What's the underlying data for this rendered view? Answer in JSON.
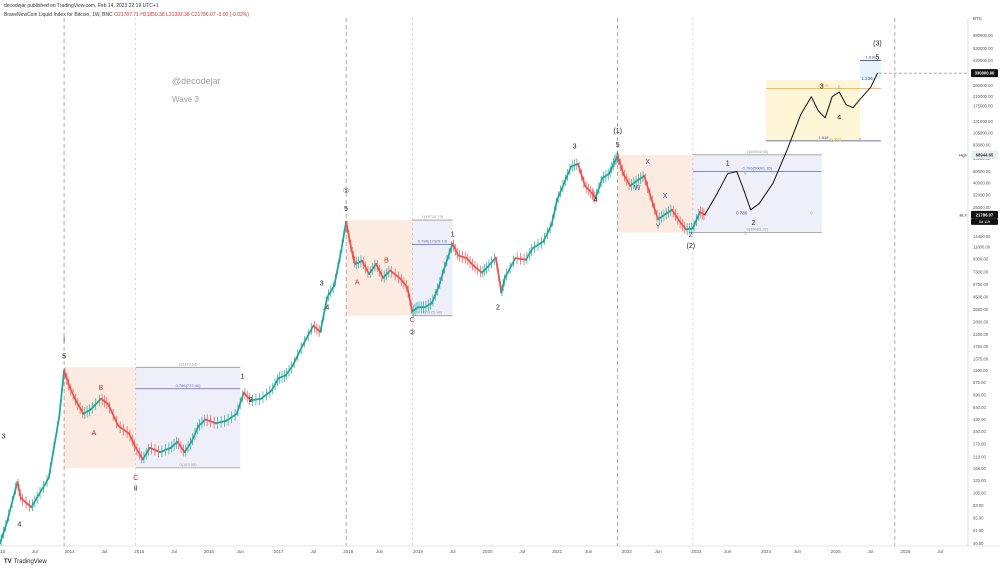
{
  "header": {
    "published": "decodejar published on TradingView.com, Feb 14, 2023 22:19 UTC+1",
    "symbol": "BraveNewCoin Liquid Index for Bitcoin, 1W, BNC",
    "ohlc": "O21787.71 H21850.38 L21392.38 C21786.07 -3.00 (-0.02%)"
  },
  "watermark": {
    "handle": "@decodejar",
    "subtitle": "Wave 3"
  },
  "footer": {
    "brand": "TradingView"
  },
  "colors": {
    "up": "#26a69a",
    "down": "#ef5350",
    "fib_pink": "#fce8dc",
    "fib_blue": "#e8eaf6",
    "fib_gold": "#fff3d0",
    "fib_lightblue": "#e3f2fd",
    "label_red": "#c62828",
    "label_blue": "#3949ab",
    "line_purple": "#5c6bc0"
  },
  "chart_data": {
    "type": "candlestick",
    "title": "",
    "scale": "log",
    "y_ticks": [
      "BTC",
      "880000.00",
      "680000.00",
      "530000.00",
      "420000.00",
      "330000.00",
      "260000.00",
      "210000.00",
      "175000.00",
      "131000.00",
      "105000.00",
      "83000.00",
      "64000.00",
      "50000.00",
      "40000.00",
      "32000.00",
      "25000.00",
      "19500.00",
      "14400.00",
      "11800.00",
      "9300.00",
      "7300.00",
      "5750.00",
      "4500.00",
      "3550.00",
      "2800.00",
      "2200.00",
      "1750.00",
      "1375.00",
      "1100.00",
      "875.00",
      "690.00",
      "540.00",
      "430.00",
      "340.00",
      "270.00",
      "210.00",
      "168.00",
      "133.00",
      "105.00",
      "83.00",
      "65.00",
      "51.00",
      "40.00"
    ],
    "y_tick_values": [
      880000,
      680000,
      530000,
      420000,
      330000,
      260000,
      210000,
      175000,
      131000,
      105000,
      83000,
      64000,
      50000,
      40000,
      32000,
      25000,
      19500,
      14400,
      11800,
      9300,
      7300,
      5750,
      4500,
      3550,
      2800,
      2200,
      1750,
      1375,
      1100,
      875,
      690,
      540,
      430,
      340,
      270,
      210,
      168,
      133,
      105,
      83,
      65,
      51,
      40
    ],
    "x_ticks": [
      "2013",
      "Jul",
      "2014",
      "Jul",
      "2015",
      "Jul",
      "2016",
      "Jun",
      "2017",
      "Jul",
      "2018",
      "Jun",
      "2019",
      "Jul",
      "2020",
      "Jul",
      "2021",
      "Jun",
      "2022",
      "Jun",
      "2023",
      "Jun",
      "2024",
      "Jun",
      "2025",
      "Jul",
      "2026",
      "Jul"
    ],
    "x_tick_values": [
      2013.0,
      2013.5,
      2014.0,
      2014.5,
      2015.0,
      2015.5,
      2016.0,
      2016.45,
      2017.0,
      2017.5,
      2018.0,
      2018.45,
      2019.0,
      2019.5,
      2020.0,
      2020.5,
      2021.0,
      2021.45,
      2022.0,
      2022.45,
      2023.0,
      2023.45,
      2024.0,
      2024.45,
      2025.0,
      2025.5,
      2026.0,
      2026.5
    ],
    "price_path": [
      [
        2013.0,
        40
      ],
      [
        2013.1,
        60
      ],
      [
        2013.25,
        130
      ],
      [
        2013.3,
        95
      ],
      [
        2013.45,
        80
      ],
      [
        2013.55,
        100
      ],
      [
        2013.7,
        140
      ],
      [
        2013.85,
        450
      ],
      [
        2013.92,
        1100
      ],
      [
        2014.0,
        800
      ],
      [
        2014.1,
        600
      ],
      [
        2014.2,
        480
      ],
      [
        2014.3,
        520
      ],
      [
        2014.45,
        640
      ],
      [
        2014.55,
        580
      ],
      [
        2014.7,
        380
      ],
      [
        2014.85,
        330
      ],
      [
        2014.95,
        250
      ],
      [
        2015.05,
        200
      ],
      [
        2015.15,
        250
      ],
      [
        2015.3,
        230
      ],
      [
        2015.45,
        250
      ],
      [
        2015.55,
        280
      ],
      [
        2015.65,
        230
      ],
      [
        2015.75,
        280
      ],
      [
        2015.85,
        380
      ],
      [
        2015.95,
        430
      ],
      [
        2016.1,
        400
      ],
      [
        2016.25,
        420
      ],
      [
        2016.4,
        480
      ],
      [
        2016.5,
        720
      ],
      [
        2016.6,
        620
      ],
      [
        2016.75,
        640
      ],
      [
        2016.9,
        750
      ],
      [
        2017.0,
        950
      ],
      [
        2017.1,
        1000
      ],
      [
        2017.2,
        1200
      ],
      [
        2017.35,
        1800
      ],
      [
        2017.5,
        2600
      ],
      [
        2017.6,
        2300
      ],
      [
        2017.7,
        4500
      ],
      [
        2017.8,
        5600
      ],
      [
        2017.9,
        11000
      ],
      [
        2017.97,
        19000
      ],
      [
        2018.05,
        11000
      ],
      [
        2018.1,
        8500
      ],
      [
        2018.2,
        9000
      ],
      [
        2018.3,
        7000
      ],
      [
        2018.4,
        8500
      ],
      [
        2018.5,
        6500
      ],
      [
        2018.6,
        7500
      ],
      [
        2018.75,
        6400
      ],
      [
        2018.85,
        5400
      ],
      [
        2018.92,
        3400
      ],
      [
        2019.0,
        3700
      ],
      [
        2019.1,
        3700
      ],
      [
        2019.2,
        4000
      ],
      [
        2019.3,
        5500
      ],
      [
        2019.4,
        8500
      ],
      [
        2019.5,
        12500
      ],
      [
        2019.58,
        10000
      ],
      [
        2019.7,
        9500
      ],
      [
        2019.8,
        8200
      ],
      [
        2019.92,
        7200
      ],
      [
        2020.0,
        8000
      ],
      [
        2020.12,
        9600
      ],
      [
        2020.2,
        4900
      ],
      [
        2020.25,
        6500
      ],
      [
        2020.4,
        9500
      ],
      [
        2020.55,
        9200
      ],
      [
        2020.65,
        11500
      ],
      [
        2020.8,
        13000
      ],
      [
        2020.92,
        18000
      ],
      [
        2021.0,
        29000
      ],
      [
        2021.1,
        40000
      ],
      [
        2021.2,
        55000
      ],
      [
        2021.3,
        58000
      ],
      [
        2021.4,
        38000
      ],
      [
        2021.5,
        33000
      ],
      [
        2021.55,
        30000
      ],
      [
        2021.65,
        44000
      ],
      [
        2021.75,
        48000
      ],
      [
        2021.82,
        60000
      ],
      [
        2021.87,
        67000
      ],
      [
        2021.95,
        48000
      ],
      [
        2022.05,
        38000
      ],
      [
        2022.15,
        42000
      ],
      [
        2022.25,
        46000
      ],
      [
        2022.35,
        30000
      ],
      [
        2022.45,
        20000
      ],
      [
        2022.55,
        22000
      ],
      [
        2022.65,
        24000
      ],
      [
        2022.75,
        19500
      ],
      [
        2022.85,
        16500
      ],
      [
        2022.95,
        16800
      ],
      [
        2023.05,
        23000
      ],
      [
        2023.12,
        21800
      ]
    ],
    "projection_path": [
      [
        2023.12,
        21800
      ],
      [
        2023.3,
        33000
      ],
      [
        2023.45,
        48000
      ],
      [
        2023.58,
        50000
      ],
      [
        2023.68,
        35000
      ],
      [
        2023.78,
        24000
      ],
      [
        2023.9,
        27000
      ],
      [
        2024.1,
        40000
      ],
      [
        2024.3,
        75000
      ],
      [
        2024.5,
        150000
      ],
      [
        2024.65,
        210000
      ],
      [
        2024.75,
        160000
      ],
      [
        2024.85,
        140000
      ],
      [
        2024.95,
        210000
      ],
      [
        2025.05,
        230000
      ],
      [
        2025.15,
        180000
      ],
      [
        2025.25,
        170000
      ],
      [
        2025.35,
        200000
      ],
      [
        2025.5,
        250000
      ],
      [
        2025.6,
        330000
      ]
    ],
    "vlines": [
      2013.92,
      2017.97,
      2021.87,
      2025.85
    ],
    "vlines_dashed": [
      2014.95,
      2018.92,
      2022.95
    ],
    "fib_boxes": [
      {
        "x0": 2013.92,
        "x1": 2014.95,
        "y0": 170,
        "y1": 1170,
        "fill": "#fce8dc"
      },
      {
        "x0": 2014.95,
        "x1": 2016.45,
        "y0": 170,
        "y1": 1170,
        "fill": "#ececf8"
      },
      {
        "x0": 2017.97,
        "x1": 2018.92,
        "y0": 3150,
        "y1": 19700,
        "fill": "#fce8dc"
      },
      {
        "x0": 2018.92,
        "x1": 2019.5,
        "y0": 3150,
        "y1": 19700,
        "fill": "#ececf8"
      },
      {
        "x0": 2021.87,
        "x1": 2022.95,
        "y0": 15500,
        "y1": 68900,
        "fill": "#fce8dc"
      },
      {
        "x0": 2022.95,
        "x1": 2024.8,
        "y0": 15500,
        "y1": 68900,
        "fill": "#ececf8"
      },
      {
        "x0": 2024.0,
        "x1": 2025.35,
        "y0": 90000,
        "y1": 290000,
        "fill": "#fff3d0"
      },
      {
        "x0": 2025.35,
        "x1": 2025.65,
        "y0": 290000,
        "y1": 420000,
        "fill": "#e3f2fd"
      }
    ],
    "fib_lines": [
      {
        "x0": 2014.95,
        "x1": 2016.45,
        "y": 1170,
        "label": "1(1179.64)",
        "color": "#999"
      },
      {
        "x0": 2014.95,
        "x1": 2016.45,
        "y": 775,
        "label": "0.786(773.40)",
        "color": "#5c6bc0"
      },
      {
        "x0": 2014.95,
        "x1": 2016.45,
        "y": 170,
        "label": "0(163.06)",
        "color": "#999"
      },
      {
        "x0": 2018.92,
        "x1": 2019.5,
        "y": 19700,
        "label": "1(19710.73)",
        "color": "#999"
      },
      {
        "x0": 2018.92,
        "x1": 2019.5,
        "y": 12300,
        "label": "0.786(12325.13)",
        "color": "#5c6bc0"
      },
      {
        "x0": 2018.92,
        "x1": 2019.5,
        "y": 3150,
        "label": "0(3125.96)",
        "color": "#999"
      },
      {
        "x0": 2022.95,
        "x1": 2024.8,
        "y": 68900,
        "label": "1(68944.65)",
        "color": "#999"
      },
      {
        "x0": 2022.95,
        "x1": 2024.8,
        "y": 50000,
        "label": "0.786(50091.35)",
        "color": "#5c6bc0"
      },
      {
        "x0": 2022.95,
        "x1": 2024.8,
        "y": 15500,
        "label": "0(15485.37)",
        "color": "#999"
      },
      {
        "x0": 2024.0,
        "x1": 2025.65,
        "y": 245000,
        "label": "2.618",
        "color": "#f9a825"
      },
      {
        "x0": 2024.0,
        "x1": 2025.65,
        "y": 90000,
        "label": "1.618",
        "color": "#3949ab"
      },
      {
        "x0": 2025.35,
        "x1": 2025.65,
        "y": 420000,
        "label": "1.618",
        "color": "#3949ab"
      }
    ],
    "wave_labels": [
      {
        "x": 2013.05,
        "y": 300,
        "text": "3",
        "color": "#222"
      },
      {
        "x": 2013.28,
        "y": 55,
        "text": "4",
        "color": "#222"
      },
      {
        "x": 2013.92,
        "y": 1900,
        "text": "I",
        "color": "#222"
      },
      {
        "x": 2013.92,
        "y": 1380,
        "text": "5",
        "color": "#222"
      },
      {
        "x": 2014.45,
        "y": 760,
        "text": "B",
        "color": "#c62828"
      },
      {
        "x": 2014.35,
        "y": 320,
        "text": "A",
        "color": "#c62828"
      },
      {
        "x": 2014.95,
        "y": 135,
        "text": "C",
        "color": "#c62828"
      },
      {
        "x": 2014.95,
        "y": 110,
        "text": "II",
        "color": "#222"
      },
      {
        "x": 2016.48,
        "y": 940,
        "text": "1",
        "color": "#222"
      },
      {
        "x": 2016.6,
        "y": 600,
        "text": "2",
        "color": "#222"
      },
      {
        "x": 2017.97,
        "y": 33000,
        "text": "①",
        "color": "#222"
      },
      {
        "x": 2017.97,
        "y": 23500,
        "text": "5",
        "color": "#222"
      },
      {
        "x": 2017.62,
        "y": 5600,
        "text": "3",
        "color": "#222"
      },
      {
        "x": 2017.7,
        "y": 3550,
        "text": "4",
        "color": "#222"
      },
      {
        "x": 2018.55,
        "y": 8700,
        "text": "B",
        "color": "#c62828"
      },
      {
        "x": 2018.13,
        "y": 5750,
        "text": "A",
        "color": "#c62828"
      },
      {
        "x": 2018.92,
        "y": 2800,
        "text": "C",
        "color": "#c62828"
      },
      {
        "x": 2018.92,
        "y": 2200,
        "text": "②",
        "color": "#222"
      },
      {
        "x": 2019.5,
        "y": 14400,
        "text": "1",
        "color": "#222"
      },
      {
        "x": 2020.15,
        "y": 3550,
        "text": "2",
        "color": "#222"
      },
      {
        "x": 2021.25,
        "y": 78000,
        "text": "3",
        "color": "#222"
      },
      {
        "x": 2021.55,
        "y": 28000,
        "text": "4",
        "color": "#222"
      },
      {
        "x": 2021.87,
        "y": 105000,
        "text": "(1)",
        "color": "#222"
      },
      {
        "x": 2021.87,
        "y": 80000,
        "text": "5",
        "color": "#222"
      },
      {
        "x": 2022.3,
        "y": 58000,
        "text": "X",
        "color": "#3949ab"
      },
      {
        "x": 2022.15,
        "y": 35000,
        "text": "W",
        "color": "#3949ab"
      },
      {
        "x": 2022.55,
        "y": 30000,
        "text": "X",
        "color": "#3949ab"
      },
      {
        "x": 2022.45,
        "y": 16800,
        "text": "Y",
        "color": "#3949ab"
      },
      {
        "x": 2022.92,
        "y": 14200,
        "text": "Z",
        "color": "#3949ab"
      },
      {
        "x": 2022.92,
        "y": 11500,
        "text": "(2)",
        "color": "#222"
      },
      {
        "x": 2023.45,
        "y": 56000,
        "text": "1",
        "color": "#222"
      },
      {
        "x": 2023.82,
        "y": 18000,
        "text": "2",
        "color": "#222"
      },
      {
        "x": 2024.8,
        "y": 245000,
        "text": "3",
        "color": "#222"
      },
      {
        "x": 2025.05,
        "y": 135000,
        "text": "4",
        "color": "#222"
      },
      {
        "x": 2025.6,
        "y": 560000,
        "text": "(3)",
        "color": "#222"
      },
      {
        "x": 2025.6,
        "y": 430000,
        "text": "5",
        "color": "#222"
      }
    ],
    "fib_small_labels": [
      {
        "x": 2023.7,
        "y": 47000,
        "text": "0",
        "color": "#999"
      },
      {
        "x": 2023.65,
        "y": 22000,
        "text": "0.786",
        "color": "#3949ab"
      },
      {
        "x": 2024.65,
        "y": 22000,
        "text": "0",
        "color": "#999"
      },
      {
        "x": 2023.7,
        "y": 15000,
        "text": "1",
        "color": "#999"
      },
      {
        "x": 2025.05,
        "y": 245000,
        "text": "0",
        "color": "#999"
      },
      {
        "x": 2025.0,
        "y": 90000,
        "text": "0.382",
        "color": "#f9a825"
      },
      {
        "x": 2025.35,
        "y": 90000,
        "text": "0",
        "color": "#999"
      },
      {
        "x": 2025.45,
        "y": 290000,
        "text": "1.236",
        "color": "#3949ab"
      }
    ],
    "price_badges": [
      {
        "y": 330000,
        "text": "330000.00",
        "bg": "#111",
        "fg": "#fff"
      },
      {
        "y": 68944,
        "text": "68944.65",
        "bg": "#eceff1",
        "fg": "#333",
        "prefix": "High"
      },
      {
        "y": 21786,
        "text": "21786.07",
        "bg": "#111",
        "fg": "#fff",
        "prefix": "BLX",
        "sub": "5d 11h"
      }
    ],
    "target_line_price": 330000
  }
}
